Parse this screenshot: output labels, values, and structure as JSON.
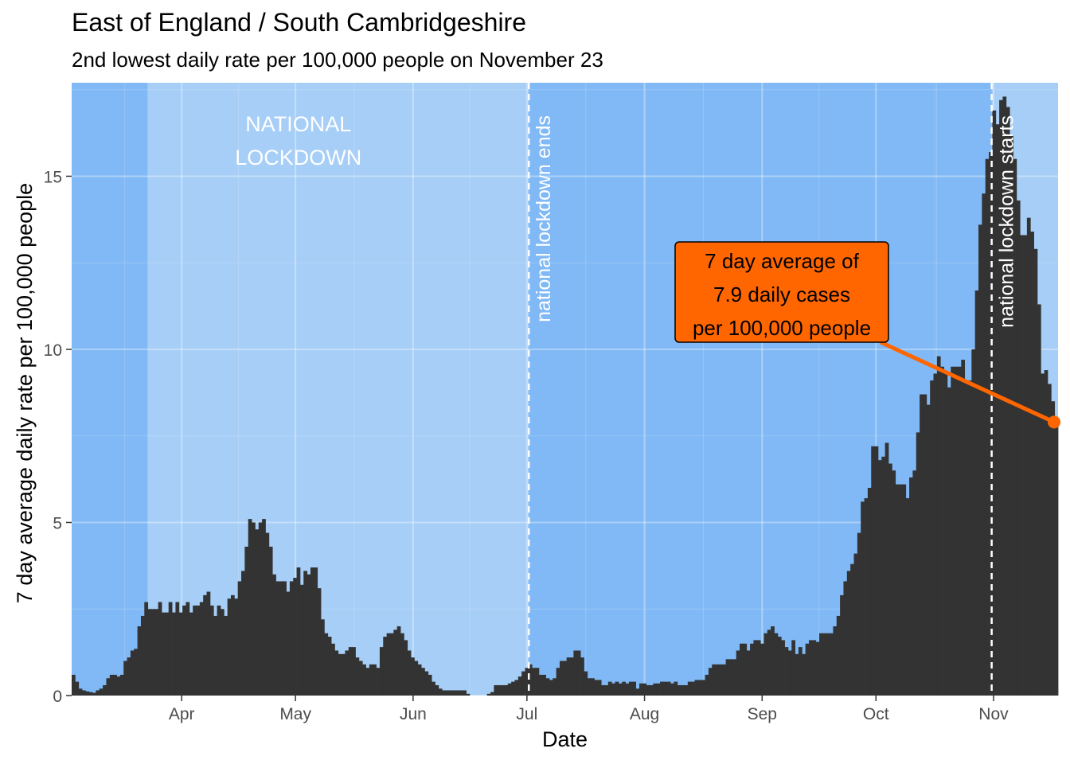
{
  "chart_data": {
    "type": "bar",
    "title": "East of England / South Cambridgeshire",
    "subtitle": "2nd lowest daily rate per 100,000 people on November 23",
    "xlabel": "Date",
    "ylabel": "7 day average daily rate per 100,000 people",
    "ylim": [
      0,
      17.7
    ],
    "yticks": [
      0,
      5,
      10,
      15
    ],
    "xlim": [
      0,
      260
    ],
    "xticks": [
      {
        "label": "Apr",
        "day": 29
      },
      {
        "label": "May",
        "day": 59
      },
      {
        "label": "Jun",
        "day": 90
      },
      {
        "label": "Jul",
        "day": 120
      },
      {
        "label": "Aug",
        "day": 151
      },
      {
        "label": "Sep",
        "day": 182
      },
      {
        "label": "Oct",
        "day": 212
      },
      {
        "label": "Nov",
        "day": 243
      }
    ],
    "values": [
      0.6,
      0.4,
      0.2,
      0.15,
      0.12,
      0.1,
      0.08,
      0.15,
      0.2,
      0.3,
      0.5,
      0.6,
      0.6,
      0.55,
      0.6,
      1.0,
      1.1,
      1.3,
      1.35,
      2.0,
      2.3,
      2.7,
      2.5,
      2.5,
      2.5,
      2.7,
      2.4,
      2.4,
      2.7,
      2.4,
      2.7,
      2.4,
      2.6,
      2.7,
      2.4,
      2.6,
      2.6,
      2.7,
      2.9,
      3.0,
      2.6,
      2.3,
      2.6,
      2.5,
      2.3,
      2.8,
      2.9,
      2.8,
      3.3,
      3.6,
      4.3,
      5.1,
      5.0,
      4.8,
      5.0,
      5.1,
      4.7,
      4.3,
      3.5,
      3.3,
      3.3,
      3.3,
      3.0,
      3.3,
      3.4,
      3.7,
      3.2,
      3.6,
      3.5,
      3.7,
      3.7,
      3.1,
      2.2,
      1.8,
      1.7,
      1.5,
      1.3,
      1.2,
      1.2,
      1.3,
      1.4,
      1.4,
      1.1,
      1.0,
      0.9,
      0.8,
      0.9,
      0.9,
      0.8,
      1.4,
      1.7,
      1.8,
      1.8,
      1.9,
      2.0,
      1.8,
      1.6,
      1.3,
      1.1,
      1.0,
      0.9,
      0.8,
      0.7,
      0.6,
      0.4,
      0.3,
      0.2,
      0.15,
      0.15,
      0.15,
      0.15,
      0.15,
      0.15,
      0.15,
      0.05,
      0.0,
      0.0,
      0.0,
      0.0,
      0.0,
      0.05,
      0.1,
      0.3,
      0.3,
      0.3,
      0.3,
      0.35,
      0.4,
      0.45,
      0.55,
      0.7,
      0.8,
      0.9,
      0.8,
      0.8,
      0.6,
      0.6,
      0.5,
      0.45,
      0.5,
      0.8,
      1.0,
      1.0,
      1.1,
      1.1,
      1.3,
      1.3,
      1.1,
      0.7,
      0.5,
      0.5,
      0.45,
      0.45,
      0.3,
      0.3,
      0.4,
      0.35,
      0.4,
      0.35,
      0.4,
      0.35,
      0.4,
      0.4,
      0.2,
      0.35,
      0.35,
      0.3,
      0.3,
      0.35,
      0.35,
      0.4,
      0.4,
      0.4,
      0.35,
      0.4,
      0.3,
      0.3,
      0.3,
      0.4,
      0.4,
      0.45,
      0.45,
      0.45,
      0.6,
      0.8,
      0.9,
      0.9,
      0.9,
      0.9,
      1.05,
      1.05,
      1.05,
      1.3,
      1.5,
      1.5,
      1.3,
      1.5,
      1.6,
      1.6,
      1.5,
      1.8,
      1.9,
      2.0,
      1.8,
      1.7,
      1.6,
      1.4,
      1.3,
      1.6,
      1.2,
      1.4,
      1.2,
      1.5,
      1.6,
      1.6,
      1.55,
      1.8,
      1.8,
      1.8,
      1.8,
      2.0,
      2.3,
      2.9,
      3.3,
      3.6,
      3.8,
      4.1,
      4.7,
      5.6,
      5.7,
      6.0,
      7.2,
      7.2,
      6.8,
      6.9,
      7.3,
      6.7,
      6.5,
      6.1,
      6.1,
      6.1,
      5.7,
      6.3,
      6.5,
      7.6,
      8.7,
      8.7,
      8.4,
      9.1,
      9.3,
      9.8,
      9.5,
      9.3,
      8.9,
      9.5,
      9.5,
      9.5,
      9.7,
      9.1,
      9.1,
      10.0,
      11.7,
      13.6,
      14.5,
      15.5,
      15.7,
      16.9,
      16.5,
      17.2,
      17.3,
      17.0,
      16.2,
      15.5,
      14.3,
      13.3,
      13.3,
      13.8,
      13.4,
      12.9,
      11.3,
      9.3,
      9.4,
      9.0,
      8.5,
      7.9
    ],
    "lockdown_periods": [
      {
        "start_day": 20,
        "end_day": 120.5
      },
      {
        "start_day": 242.5,
        "end_day": 260
      }
    ],
    "reference_lines": [
      {
        "day": 120.5,
        "label": "national lockdown ends"
      },
      {
        "day": 242.5,
        "label": "national lockdown starts"
      }
    ],
    "region_label": [
      "NATIONAL",
      "LOCKDOWN"
    ],
    "annotation": {
      "lines": [
        "7 day average of",
        "7.9 daily cases",
        "per 100,000 people"
      ],
      "point_day": 260,
      "point_value": 7.9
    },
    "colors": {
      "panel": "#80b9f5",
      "lockdown": "#a6cef7",
      "bars": "#333333",
      "annotation": "#ff6600",
      "reference": "#ffffff"
    },
    "grid": true,
    "legend": "none"
  }
}
